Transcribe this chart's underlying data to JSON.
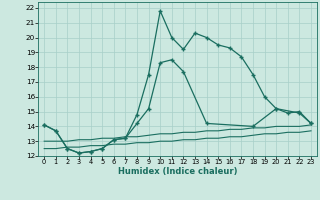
{
  "xlabel": "Humidex (Indice chaleur)",
  "bg_color": "#cce8e0",
  "grid_color": "#a8cfc8",
  "line_color": "#1a6e60",
  "xlim": [
    -0.5,
    23.5
  ],
  "ylim": [
    12,
    22.4
  ],
  "yticks": [
    12,
    13,
    14,
    15,
    16,
    17,
    18,
    19,
    20,
    21,
    22
  ],
  "xticks": [
    0,
    1,
    2,
    3,
    4,
    5,
    6,
    7,
    8,
    9,
    10,
    11,
    12,
    13,
    14,
    15,
    16,
    17,
    18,
    19,
    20,
    21,
    22,
    23
  ],
  "s1_x": [
    0,
    1,
    2,
    3,
    4,
    5,
    6,
    7,
    8,
    9,
    10,
    11,
    12,
    13,
    14,
    15,
    16,
    17,
    18,
    19,
    20,
    21,
    22,
    23
  ],
  "s1_y": [
    14.1,
    13.7,
    12.5,
    12.2,
    12.3,
    12.5,
    13.1,
    13.2,
    14.8,
    17.5,
    21.8,
    20.0,
    19.2,
    20.3,
    20.0,
    19.5,
    19.3,
    18.7,
    17.5,
    16.0,
    15.2,
    14.9,
    15.0,
    14.2
  ],
  "s2_x": [
    0,
    1,
    2,
    3,
    4,
    5,
    6,
    7,
    8,
    9,
    10,
    11,
    12,
    14,
    18,
    20,
    22,
    23
  ],
  "s2_y": [
    14.1,
    13.7,
    12.5,
    12.2,
    12.3,
    12.5,
    13.1,
    13.2,
    14.2,
    15.2,
    18.3,
    18.5,
    17.7,
    14.2,
    14.0,
    15.2,
    14.9,
    14.2
  ],
  "s3_x": [
    0,
    1,
    2,
    3,
    4,
    5,
    6,
    7,
    8,
    9,
    10,
    11,
    12,
    13,
    14,
    15,
    16,
    17,
    18,
    19,
    20,
    21,
    22,
    23
  ],
  "s3_y": [
    13.0,
    13.0,
    13.0,
    13.1,
    13.1,
    13.2,
    13.2,
    13.3,
    13.3,
    13.4,
    13.5,
    13.5,
    13.6,
    13.6,
    13.7,
    13.7,
    13.8,
    13.8,
    13.9,
    13.9,
    14.0,
    14.0,
    14.0,
    14.1
  ],
  "s4_x": [
    0,
    1,
    2,
    3,
    4,
    5,
    6,
    7,
    8,
    9,
    10,
    11,
    12,
    13,
    14,
    15,
    16,
    17,
    18,
    19,
    20,
    21,
    22,
    23
  ],
  "s4_y": [
    12.5,
    12.5,
    12.6,
    12.6,
    12.7,
    12.7,
    12.8,
    12.8,
    12.9,
    12.9,
    13.0,
    13.0,
    13.1,
    13.1,
    13.2,
    13.2,
    13.3,
    13.3,
    13.4,
    13.5,
    13.5,
    13.6,
    13.6,
    13.7
  ]
}
